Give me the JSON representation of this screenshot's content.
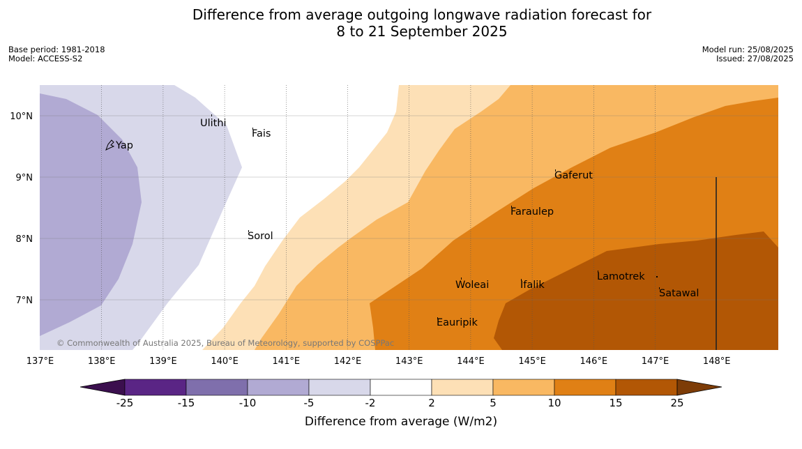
{
  "title_line1": "Difference from average outgoing longwave radiation forecast for",
  "title_line2": "8 to 21 September 2025",
  "base_period": "Base period: 1981-2018",
  "model": "Model: ACCESS-S2",
  "model_run": "Model run: 25/08/2025",
  "issued": "Issued: 27/08/2025",
  "copyright": "© Commonwealth of Australia 2025, Bureau of Meteorology, supported by COSPPac",
  "colorbar_label": "Difference from average (W/m2)",
  "lon_labels": [
    "137°E",
    "138°E",
    "139°E",
    "140°E",
    "141°E",
    "142°E",
    "143°E",
    "144°E",
    "145°E",
    "146°E",
    "147°E",
    "148°E"
  ],
  "lat_labels": [
    "10°N",
    "9°N",
    "8°N",
    "7°N"
  ],
  "places": [
    "Ulithi",
    "Fais",
    "Yap",
    "Gaferut",
    "Faraulep",
    "Sorol",
    "Woleai",
    "Ifalik",
    "Lamotrek",
    "Satawal",
    "Eauripik"
  ],
  "colorbar": {
    "ticks": [
      "-25",
      "-15",
      "-10",
      "-5",
      "-2",
      "2",
      "5",
      "10",
      "15",
      "25"
    ],
    "colors": [
      "#3b0f4e",
      "#5a2585",
      "#7f6fac",
      "#b1aad3",
      "#d8d8ea",
      "#ffffff",
      "#fde0b6",
      "#f9b862",
      "#e08015",
      "#b25705",
      "#7d3c07"
    ]
  },
  "map_colors": {
    "minus10_minus5": "#b1aad3",
    "minus5_minus2": "#d8d8ea",
    "plus2_plus5": "#fde0b6",
    "plus5_plus10": "#f9b862",
    "plus10_plus15": "#e08015",
    "plus15_plus25": "#b25705"
  }
}
